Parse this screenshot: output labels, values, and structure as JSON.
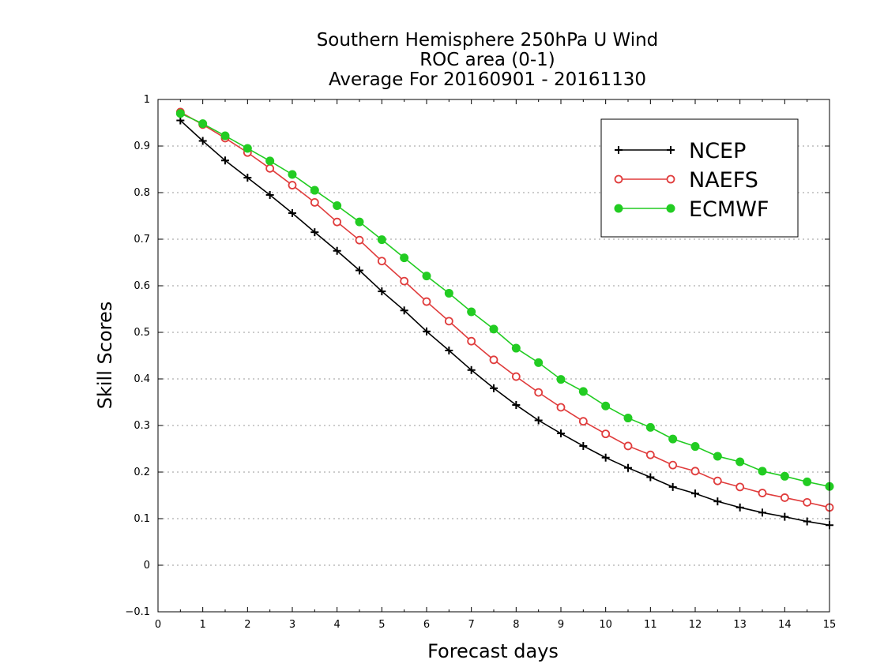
{
  "chart_data": {
    "type": "line",
    "title_lines": [
      "Southern Hemisphere 250hPa U Wind",
      "ROC area (0-1)",
      "Average For 20160901 - 20161130"
    ],
    "xlabel": "Forecast days",
    "ylabel": "Skill Scores",
    "xlim": [
      0,
      15
    ],
    "ylim": [
      -0.1,
      1
    ],
    "x_ticks": [
      "0",
      "1",
      "2",
      "3",
      "4",
      "5",
      "6",
      "7",
      "8",
      "9",
      "10",
      "11",
      "12",
      "13",
      "14",
      "15"
    ],
    "y_ticks": [
      "−0.1",
      "0",
      "0.1",
      "0.2",
      "0.3",
      "0.4",
      "0.5",
      "0.6",
      "0.7",
      "0.8",
      "0.9",
      "1"
    ],
    "grid": "horizontal dotted",
    "legend_position": "top-right",
    "x": [
      0.5,
      1,
      1.5,
      2,
      2.5,
      3,
      3.5,
      4,
      4.5,
      5,
      5.5,
      6,
      6.5,
      7,
      7.5,
      8,
      8.5,
      9,
      9.5,
      10,
      10.5,
      11,
      11.5,
      12,
      12.5,
      13,
      13.5,
      14,
      14.5,
      15
    ],
    "series": [
      {
        "name": "NCEP",
        "color": "#000000",
        "marker": "plus",
        "values": [
          0.955,
          0.911,
          0.869,
          0.832,
          0.795,
          0.756,
          0.715,
          0.675,
          0.633,
          0.588,
          0.547,
          0.502,
          0.461,
          0.419,
          0.38,
          0.344,
          0.311,
          0.283,
          0.256,
          0.231,
          0.209,
          0.189,
          0.168,
          0.154,
          0.137,
          0.124,
          0.113,
          0.104,
          0.094,
          0.086
        ]
      },
      {
        "name": "NAEFS",
        "color": "#e03c3c",
        "marker": "open-circle",
        "values": [
          0.973,
          0.946,
          0.917,
          0.886,
          0.852,
          0.816,
          0.779,
          0.737,
          0.698,
          0.653,
          0.61,
          0.566,
          0.524,
          0.481,
          0.441,
          0.405,
          0.371,
          0.339,
          0.309,
          0.282,
          0.256,
          0.237,
          0.215,
          0.202,
          0.181,
          0.168,
          0.155,
          0.145,
          0.135,
          0.124
        ]
      },
      {
        "name": "ECMWF",
        "color": "#22cc22",
        "marker": "filled-circle",
        "values": [
          0.97,
          0.948,
          0.922,
          0.895,
          0.868,
          0.839,
          0.805,
          0.772,
          0.737,
          0.699,
          0.66,
          0.621,
          0.584,
          0.544,
          0.507,
          0.466,
          0.435,
          0.399,
          0.373,
          0.342,
          0.316,
          0.296,
          0.271,
          0.255,
          0.234,
          0.222,
          0.202,
          0.191,
          0.179,
          0.169
        ]
      }
    ]
  }
}
